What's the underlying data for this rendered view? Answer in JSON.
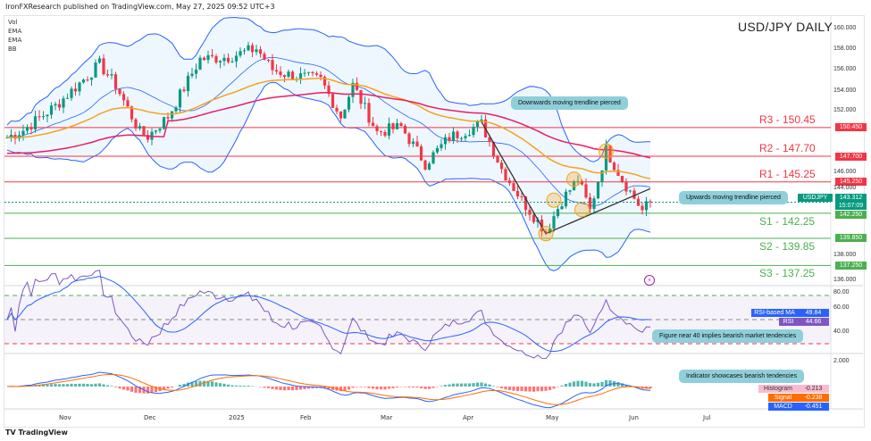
{
  "header": {
    "published": "IronFXResearch published on TradingView.com, May 27, 2025 09:52 UTC+3",
    "title": "USD/JPY DAILY"
  },
  "legend": [
    "Vol",
    "EMA",
    "EMA",
    "BB"
  ],
  "levels": [
    {
      "label": "R3 - 150.45",
      "value": 150.45,
      "tag": "150.450",
      "color": "#f23645"
    },
    {
      "label": "R2 - 147.70",
      "value": 147.7,
      "tag": "147.700",
      "color": "#f23645"
    },
    {
      "label": "R1 - 145.25",
      "value": 145.25,
      "tag": "145.250",
      "color": "#f23645"
    },
    {
      "label": "S1 - 142.25",
      "value": 142.25,
      "tag": "142.250",
      "color": "#4caf50"
    },
    {
      "label": "S2 - 139.85",
      "value": 139.85,
      "tag": "139.850",
      "color": "#4caf50"
    },
    {
      "label": "S3 - 137.25",
      "value": 137.25,
      "tag": "137.250",
      "color": "#4caf50"
    }
  ],
  "price_axis": [
    "160.000",
    "158.000",
    "156.000",
    "154.000",
    "152.000",
    "146.000",
    "144.000",
    "138.000",
    "136.000"
  ],
  "current": {
    "symbol": "USDJPY",
    "price": "143.312",
    "countdown": "15:07:09",
    "value": 143.312
  },
  "rsi": {
    "axis": [
      "80.00",
      "60.00",
      "40.00"
    ],
    "ma_label": "RSI-based MA",
    "ma": "49.84",
    "rsi_label": "RSI",
    "rsi": "44.66"
  },
  "macd": {
    "axis": [
      "2.000"
    ],
    "hist_label": "Histogram",
    "hist": "-0.213",
    "signal_label": "Signal",
    "signal": "-0.238",
    "macd_label": "MACD",
    "macd": "-0.451"
  },
  "callouts": {
    "down": "Downwards moving trendline  pierced",
    "up": "Upwards moving trendline pierced",
    "rsi": "Figure near 40 implies  bearish market tendencies",
    "macd": "Indicator showcases bearish tendencies"
  },
  "dates": [
    "Nov",
    "Dec",
    "2025",
    "Feb",
    "Mar",
    "Apr",
    "May",
    "Jun",
    "Jul"
  ],
  "footer": "TradingView",
  "colors": {
    "up": "#089981",
    "down": "#f23645",
    "ema_fast": "#f7a21b",
    "ema_slow": "#e91e63",
    "bb": "#2962ff"
  },
  "chart_data": {
    "type": "candlestick",
    "symbol": "USDJPY",
    "timeframe": "1D",
    "close_anchors": [
      [
        0,
        149.5
      ],
      [
        4,
        150.2
      ],
      [
        12,
        152.5
      ],
      [
        23,
        156.5
      ],
      [
        27,
        154.5
      ],
      [
        33,
        150
      ],
      [
        35,
        149.6
      ],
      [
        40,
        151.5
      ],
      [
        48,
        157
      ],
      [
        55,
        157.2
      ],
      [
        62,
        158
      ],
      [
        66,
        156
      ],
      [
        70,
        155.5
      ],
      [
        78,
        155
      ],
      [
        83,
        151.5
      ],
      [
        86,
        154.5
      ],
      [
        92,
        150
      ],
      [
        98,
        150.5
      ],
      [
        104,
        147
      ],
      [
        110,
        149.5
      ],
      [
        118,
        150.8
      ],
      [
        123,
        146.5
      ],
      [
        128,
        143.5
      ],
      [
        134,
        140.5
      ],
      [
        138,
        143.5
      ],
      [
        142,
        145.5
      ],
      [
        145,
        142.5
      ],
      [
        149,
        148.3
      ],
      [
        153,
        145.5
      ],
      [
        158,
        142.5
      ],
      [
        160,
        143.3
      ]
    ]
  }
}
